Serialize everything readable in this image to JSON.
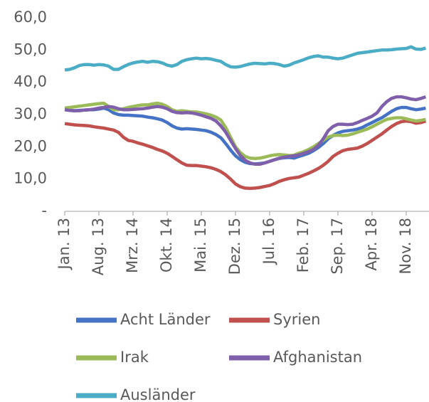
{
  "chart_data": {
    "type": "line",
    "categories": [
      "Jan. 13",
      null,
      null,
      null,
      null,
      null,
      null,
      "Aug. 13",
      null,
      null,
      null,
      null,
      null,
      null,
      "Mrz. 14",
      null,
      null,
      null,
      null,
      null,
      null,
      "Okt. 14",
      null,
      null,
      null,
      null,
      null,
      null,
      "Mai. 15",
      null,
      null,
      null,
      null,
      null,
      null,
      "Dez. 15",
      null,
      null,
      null,
      null,
      null,
      null,
      "Jul. 16",
      null,
      null,
      null,
      null,
      null,
      null,
      "Feb. 17",
      null,
      null,
      null,
      null,
      null,
      null,
      "Sep. 17",
      null,
      null,
      null,
      null,
      null,
      null,
      "Apr. 18",
      null,
      null,
      null,
      null,
      null,
      null,
      "Nov. 18",
      null,
      null,
      null,
      null
    ],
    "series": [
      {
        "name": "Acht Länder",
        "color": "#4472c4",
        "values": [
          31.5,
          31.3,
          31.2,
          31.3,
          31.4,
          31.5,
          31.5,
          31.7,
          32,
          31.5,
          30.5,
          30,
          29.8,
          29.8,
          29.7,
          29.6,
          29.5,
          29.2,
          29,
          28.7,
          28.3,
          27.5,
          26.5,
          25.8,
          25.5,
          25.6,
          25.5,
          25.4,
          25.2,
          25,
          24.5,
          23.8,
          22.8,
          21,
          19,
          17.2,
          16,
          15.2,
          14.8,
          14.7,
          14.8,
          15,
          15.5,
          16,
          16.4,
          16.6,
          16.7,
          16.5,
          17,
          17.5,
          18,
          18.8,
          19.8,
          21,
          22.5,
          23.5,
          24.3,
          24.8,
          25,
          25.2,
          25.5,
          26,
          26.8,
          27.5,
          28.3,
          29,
          30,
          31,
          31.8,
          32.2,
          32.2,
          31.8,
          31.5,
          31.7,
          32
        ]
      },
      {
        "name": "Syrien",
        "color": "#c0504d",
        "values": [
          27.2,
          27,
          26.8,
          26.7,
          26.6,
          26.5,
          26.2,
          26,
          25.8,
          25.5,
          25.2,
          24.5,
          23,
          22,
          21.7,
          21.2,
          20.8,
          20.3,
          19.8,
          19.2,
          18.7,
          18,
          17,
          16,
          15,
          14.3,
          14.2,
          14.2,
          14,
          13.8,
          13.5,
          13,
          12.3,
          11.3,
          10,
          8.5,
          7.6,
          7.2,
          7.1,
          7.2,
          7.4,
          7.7,
          8,
          8.6,
          9.3,
          9.8,
          10.2,
          10.4,
          10.6,
          11.2,
          11.8,
          12.5,
          13.3,
          14.3,
          15.5,
          17,
          18,
          18.8,
          19.2,
          19.4,
          19.6,
          20.2,
          21,
          22,
          23,
          24,
          25.2,
          26.3,
          27.2,
          27.8,
          28,
          27.8,
          27.3,
          27.5,
          28
        ]
      },
      {
        "name": "Irak",
        "color": "#9bbb59",
        "values": [
          32,
          32.2,
          32.4,
          32.6,
          32.8,
          33,
          33.2,
          33.4,
          33.5,
          32.5,
          31.5,
          31.5,
          31.8,
          32.2,
          32.5,
          32.8,
          33,
          33,
          33.3,
          33.5,
          33.2,
          32.5,
          31.5,
          31,
          31.2,
          31,
          30.8,
          30.8,
          30.5,
          30.2,
          29.8,
          29.2,
          28.3,
          26,
          23,
          20,
          18.2,
          17,
          16.5,
          16.4,
          16.5,
          16.8,
          17.2,
          17.5,
          17.6,
          17.5,
          17.3,
          17.4,
          18,
          18.5,
          19.2,
          20,
          21,
          22,
          23,
          23.5,
          23.6,
          23.5,
          23.6,
          24,
          24.5,
          25,
          25.5,
          26.2,
          27,
          27.8,
          28.5,
          28.8,
          29,
          29,
          28.7,
          28.3,
          28,
          28.2,
          28.5
        ]
      },
      {
        "name": "Afghanistan",
        "color": "#7f5fa9",
        "values": [
          31.5,
          31.3,
          31.2,
          31.2,
          31.4,
          31.5,
          31.7,
          32,
          32.2,
          32.5,
          32.3,
          31.8,
          31.5,
          31.5,
          31.6,
          31.7,
          31.8,
          32,
          32.3,
          32.5,
          32.3,
          31.8,
          31,
          30.6,
          30.5,
          30.6,
          30.5,
          30.2,
          29.8,
          29.3,
          28.8,
          28,
          26.5,
          24.5,
          22,
          19.5,
          17.3,
          15.8,
          15,
          14.6,
          14.6,
          15,
          15.5,
          16,
          16.5,
          16.8,
          17,
          17.2,
          17.5,
          18,
          18.5,
          19.2,
          20.5,
          22.5,
          25,
          26.3,
          27,
          27,
          26.9,
          27,
          27.5,
          28.2,
          28.8,
          29.5,
          30.5,
          32.5,
          34,
          35,
          35.5,
          35.5,
          35.2,
          34.8,
          34.6,
          35,
          35.5
        ]
      },
      {
        "name": "Ausländer",
        "color": "#4bacc6",
        "values": [
          43.8,
          44,
          44.5,
          45.2,
          45.5,
          45.5,
          45.3,
          45.5,
          45.4,
          45,
          44,
          44,
          44.8,
          45.5,
          46,
          46.3,
          46.5,
          46.2,
          46.5,
          46.4,
          46,
          45.3,
          45,
          45.5,
          46.5,
          47,
          47.3,
          47.5,
          47.3,
          47.4,
          47.2,
          46.8,
          46.5,
          45.5,
          44.8,
          44.7,
          44.9,
          45.3,
          45.7,
          45.9,
          45.8,
          45.7,
          45.9,
          45.8,
          45.5,
          45,
          45.3,
          46,
          46.5,
          47,
          47.6,
          48,
          48.2,
          47.8,
          47.8,
          47.5,
          47.3,
          47.5,
          48,
          48.5,
          49,
          49.2,
          49.4,
          49.6,
          49.8,
          50,
          50,
          50.1,
          50.3,
          50.4,
          50.5,
          51,
          50.3,
          50.2,
          50.6
        ]
      }
    ],
    "ylim": [
      0,
      60
    ],
    "yticks": [
      {
        "value": 0,
        "label": "-"
      },
      {
        "value": 10,
        "label": "10,0"
      },
      {
        "value": 20,
        "label": "20,0"
      },
      {
        "value": 30,
        "label": "30,0"
      },
      {
        "value": 40,
        "label": "40,0"
      },
      {
        "value": 50,
        "label": "50,0"
      },
      {
        "value": 60,
        "label": "60,0"
      }
    ],
    "grid": false
  }
}
